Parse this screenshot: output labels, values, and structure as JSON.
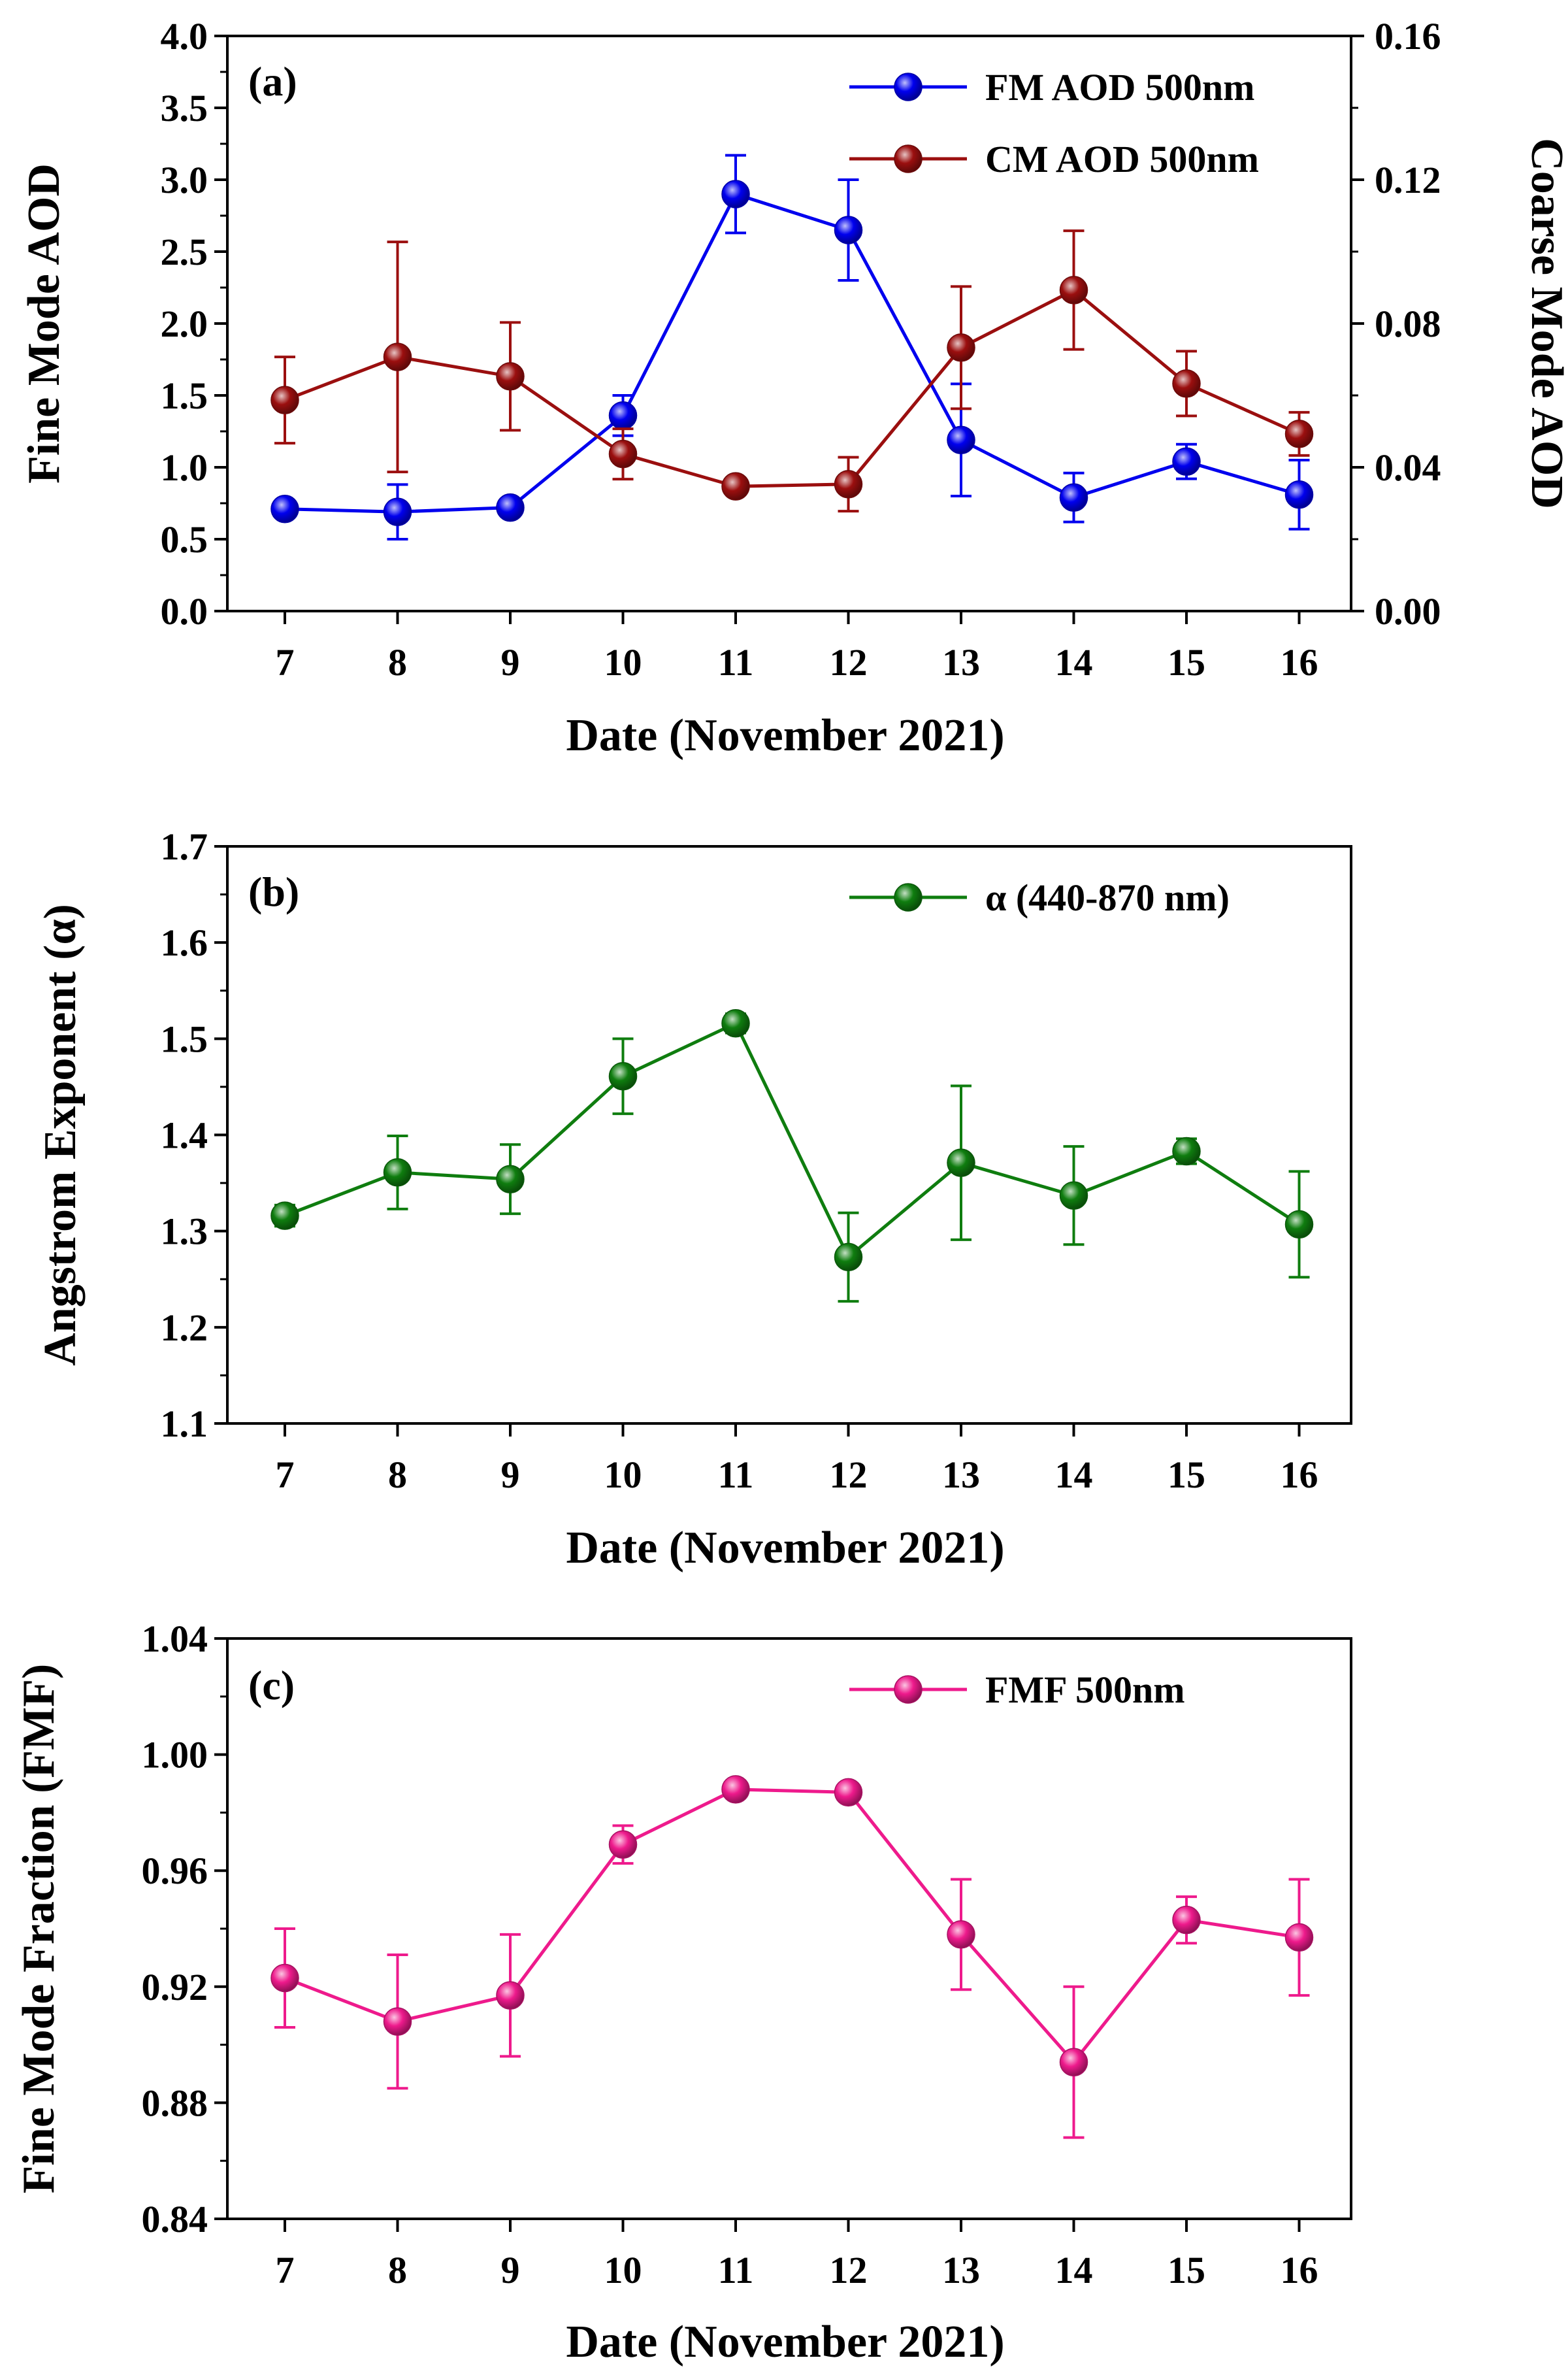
{
  "figure": {
    "panels": [
      "a",
      "b",
      "c"
    ]
  },
  "chart_data": [
    {
      "type": "line",
      "panel_label": "(a)",
      "categories": [
        "7",
        "8",
        "9",
        "10",
        "11",
        "12",
        "13",
        "14",
        "15",
        "16"
      ],
      "xlabel": "Date (November 2021)",
      "ylabel": "Fine Mode AOD",
      "y2label": "Coarse Mode AOD",
      "ylim": [
        0.0,
        4.0
      ],
      "yticks": [
        "0.0",
        "0.5",
        "1.0",
        "1.5",
        "2.0",
        "2.5",
        "3.0",
        "3.5",
        "4.0"
      ],
      "y2lim": [
        0.0,
        0.16
      ],
      "y2ticks": [
        "0.00",
        "0.04",
        "0.08",
        "0.12",
        "0.16"
      ],
      "legend_position": "top-right",
      "series": [
        {
          "name": "FM AOD 500nm",
          "axis": "left",
          "color": "#0000ee",
          "values": [
            0.71,
            0.69,
            0.72,
            1.36,
            2.9,
            2.65,
            1.19,
            0.79,
            1.04,
            0.81
          ],
          "errors": [
            0.05,
            0.19,
            0.05,
            0.14,
            0.27,
            0.35,
            0.39,
            0.17,
            0.12,
            0.24
          ]
        },
        {
          "name": "CM AOD 500nm",
          "axis": "right",
          "color": "#9b0f0f",
          "values": [
            0.0587,
            0.0707,
            0.0653,
            0.0437,
            0.0347,
            0.0353,
            0.0733,
            0.0893,
            0.0633,
            0.0493
          ],
          "errors": [
            0.012,
            0.032,
            0.015,
            0.007,
            0.002,
            0.0075,
            0.017,
            0.0165,
            0.009,
            0.006
          ]
        }
      ]
    },
    {
      "type": "line",
      "panel_label": "(b)",
      "categories": [
        "7",
        "8",
        "9",
        "10",
        "11",
        "12",
        "13",
        "14",
        "15",
        "16"
      ],
      "xlabel": "Date (November 2021)",
      "ylabel": "Angstrom Exponent (α)",
      "ylim": [
        1.1,
        1.7
      ],
      "yticks": [
        "1.1",
        "1.2",
        "1.3",
        "1.4",
        "1.5",
        "1.6",
        "1.7"
      ],
      "legend_position": "top-right",
      "series": [
        {
          "name": "α (440-870 nm)",
          "color": "#0f7d0f",
          "values": [
            1.316,
            1.361,
            1.354,
            1.461,
            1.516,
            1.273,
            1.371,
            1.337,
            1.383,
            1.307
          ],
          "errors": [
            0.011,
            0.038,
            0.036,
            0.039,
            0.01,
            0.046,
            0.08,
            0.051,
            0.013,
            0.055
          ]
        }
      ]
    },
    {
      "type": "line",
      "panel_label": "(c)",
      "categories": [
        "7",
        "8",
        "9",
        "10",
        "11",
        "12",
        "13",
        "14",
        "15",
        "16"
      ],
      "xlabel": "Date (November 2021)",
      "ylabel": "Fine Mode Fraction (FMF)",
      "ylim": [
        0.84,
        1.04
      ],
      "yticks": [
        "0.84",
        "0.88",
        "0.92",
        "0.96",
        "1.00",
        "1.04"
      ],
      "legend_position": "top-right",
      "series": [
        {
          "name": "FMF 500nm",
          "color": "#ee1a8c",
          "values": [
            0.923,
            0.908,
            0.917,
            0.969,
            0.988,
            0.987,
            0.938,
            0.894,
            0.943,
            0.937
          ],
          "errors": [
            0.017,
            0.023,
            0.021,
            0.0065,
            0.0015,
            0.002,
            0.019,
            0.026,
            0.008,
            0.02
          ]
        }
      ]
    }
  ]
}
